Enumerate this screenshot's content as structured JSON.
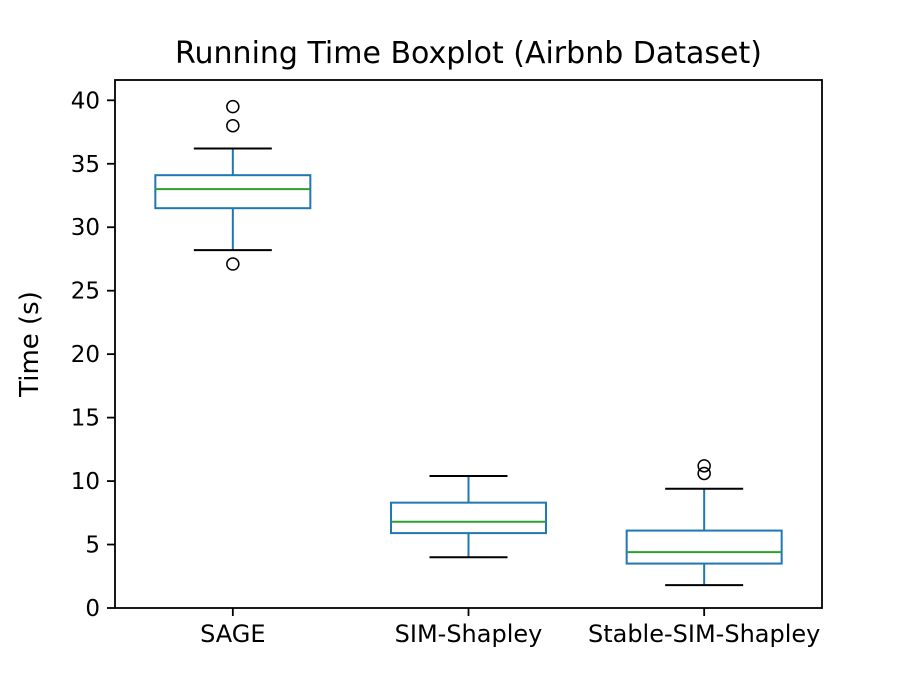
{
  "chart_data": {
    "type": "boxplot",
    "title": "Running Time Boxplot (Airbnb Dataset)",
    "xlabel": "",
    "ylabel": "Time (s)",
    "categories": [
      "SAGE",
      "SIM-Shapley",
      "Stable-SIM-Shapley"
    ],
    "yticks": [
      0,
      5,
      10,
      15,
      20,
      25,
      30,
      35,
      40
    ],
    "ylim": [
      0,
      41.6
    ],
    "grid": false,
    "legend_position": "none",
    "series": [
      {
        "name": "SAGE",
        "whisker_low": 28.2,
        "q1": 31.5,
        "median": 33.0,
        "q3": 34.1,
        "whisker_high": 36.2,
        "outliers": [
          39.5,
          38.0,
          27.1
        ]
      },
      {
        "name": "SIM-Shapley",
        "whisker_low": 4.0,
        "q1": 5.9,
        "median": 6.8,
        "q3": 8.3,
        "whisker_high": 10.4,
        "outliers": []
      },
      {
        "name": "Stable-SIM-Shapley",
        "whisker_low": 1.8,
        "q1": 3.5,
        "median": 4.4,
        "q3": 6.1,
        "whisker_high": 9.4,
        "outliers": [
          11.2,
          10.6
        ]
      }
    ],
    "colors": {
      "box": "#1f77b4",
      "whisker": "#1f77b4",
      "median": "#2ca02c",
      "cap": "#000000",
      "flier": "#000000",
      "spine": "#000000",
      "background": "#ffffff"
    }
  }
}
